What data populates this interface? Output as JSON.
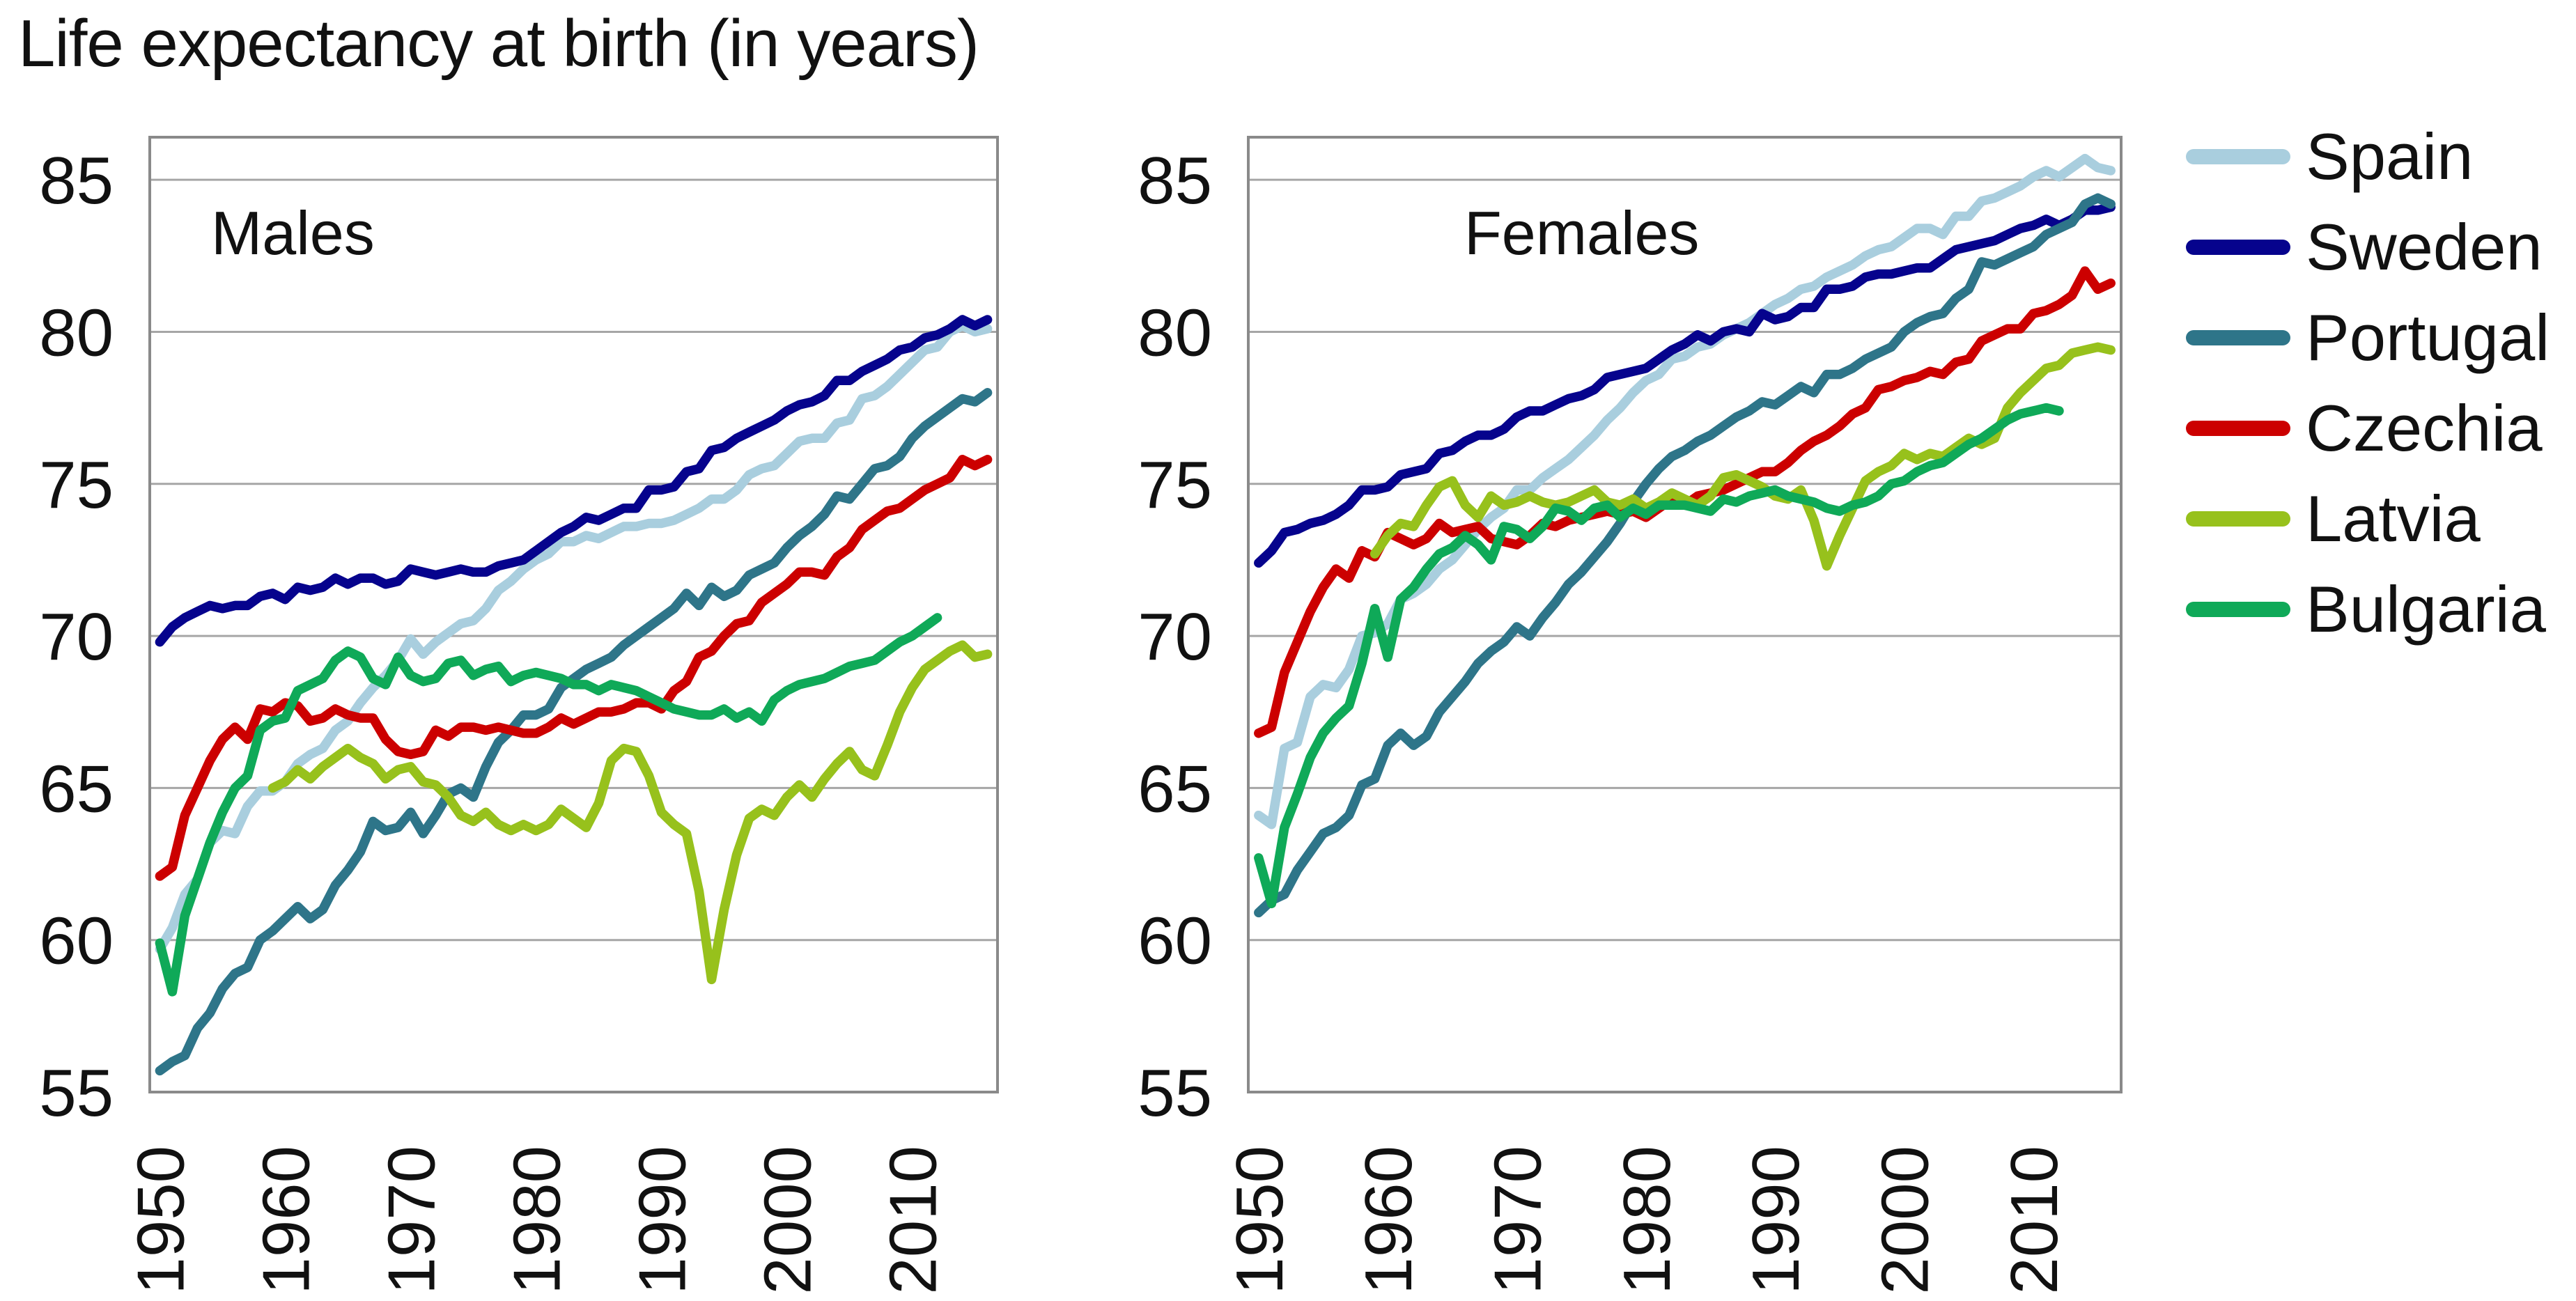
{
  "title": "Life expectancy at birth (in years)",
  "legend": {
    "items": [
      {
        "label": "Spain",
        "color": "#a9cede"
      },
      {
        "label": "Sweden",
        "color": "#06038d"
      },
      {
        "label": "Portugal",
        "color": "#2e7589"
      },
      {
        "label": "Czechia",
        "color": "#cc0000"
      },
      {
        "label": "Latvia",
        "color": "#97c11c"
      },
      {
        "label": "Bulgaria",
        "color": "#0fa958"
      }
    ]
  },
  "axes": {
    "y_ticks": [
      55,
      60,
      65,
      70,
      75,
      80,
      85
    ],
    "x_ticks": [
      1950,
      1960,
      1970,
      1980,
      1990,
      2000,
      2010
    ],
    "ylim": [
      55,
      86.4
    ],
    "xlim": [
      1949.2,
      2016.8
    ],
    "grid": "horizontal"
  },
  "colors": {
    "gridline": "#a6a6a6",
    "frame": "#8a8a8a",
    "text": "#111111"
  },
  "chart_data": [
    {
      "type": "line",
      "panel": "males",
      "panel_label": "Males",
      "series": [
        {
          "name": "Spain",
          "color": "#a9cede",
          "start_year": 1950,
          "values": [
            59.7,
            60.4,
            61.5,
            62.0,
            63.2,
            63.6,
            63.5,
            64.4,
            64.9,
            64.9,
            65.2,
            65.8,
            66.1,
            66.3,
            66.9,
            67.2,
            67.8,
            68.3,
            68.7,
            69.2,
            69.9,
            69.4,
            69.8,
            70.1,
            70.4,
            70.5,
            70.9,
            71.5,
            71.8,
            72.2,
            72.5,
            72.7,
            73.1,
            73.1,
            73.3,
            73.2,
            73.4,
            73.6,
            73.6,
            73.7,
            73.7,
            73.8,
            74.0,
            74.2,
            74.5,
            74.5,
            74.8,
            75.3,
            75.5,
            75.6,
            76.0,
            76.4,
            76.5,
            76.5,
            77.0,
            77.1,
            77.8,
            77.9,
            78.2,
            78.6,
            79.0,
            79.4,
            79.5,
            80.0,
            80.2,
            80.0,
            80.1
          ]
        },
        {
          "name": "Sweden",
          "color": "#06038d",
          "start_year": 1950,
          "values": [
            69.8,
            70.3,
            70.6,
            70.8,
            71.0,
            70.9,
            71.0,
            71.0,
            71.3,
            71.4,
            71.2,
            71.6,
            71.5,
            71.6,
            71.9,
            71.7,
            71.9,
            71.9,
            71.7,
            71.8,
            72.2,
            72.1,
            72.0,
            72.1,
            72.2,
            72.1,
            72.1,
            72.3,
            72.4,
            72.5,
            72.8,
            73.1,
            73.4,
            73.6,
            73.9,
            73.8,
            74.0,
            74.2,
            74.2,
            74.8,
            74.8,
            74.9,
            75.4,
            75.5,
            76.1,
            76.2,
            76.5,
            76.7,
            76.9,
            77.1,
            77.4,
            77.6,
            77.7,
            77.9,
            78.4,
            78.4,
            78.7,
            78.9,
            79.1,
            79.4,
            79.5,
            79.8,
            79.9,
            80.1,
            80.4,
            80.2,
            80.4
          ]
        },
        {
          "name": "Portugal",
          "color": "#2e7589",
          "start_year": 1950,
          "values": [
            55.7,
            56.0,
            56.2,
            57.1,
            57.6,
            58.4,
            58.9,
            59.1,
            60.0,
            60.3,
            60.7,
            61.1,
            60.7,
            61.0,
            61.8,
            62.3,
            62.9,
            63.9,
            63.6,
            63.7,
            64.2,
            63.5,
            64.1,
            64.8,
            65.0,
            64.7,
            65.7,
            66.5,
            66.9,
            67.4,
            67.4,
            67.6,
            68.3,
            68.6,
            68.9,
            69.1,
            69.3,
            69.7,
            70.0,
            70.3,
            70.6,
            70.9,
            71.4,
            71.0,
            71.6,
            71.3,
            71.5,
            72.0,
            72.2,
            72.4,
            72.9,
            73.3,
            73.6,
            74.0,
            74.6,
            74.5,
            75.0,
            75.5,
            75.6,
            75.9,
            76.5,
            76.9,
            77.2,
            77.5,
            77.8,
            77.7,
            78.0
          ]
        },
        {
          "name": "Czechia",
          "color": "#cc0000",
          "start_year": 1950,
          "values": [
            62.1,
            62.4,
            64.1,
            65.0,
            65.9,
            66.6,
            67.0,
            66.6,
            67.6,
            67.5,
            67.8,
            67.7,
            67.2,
            67.3,
            67.6,
            67.4,
            67.3,
            67.3,
            66.6,
            66.2,
            66.1,
            66.2,
            66.9,
            66.7,
            67.0,
            67.0,
            66.9,
            67.0,
            66.9,
            66.8,
            66.8,
            67.0,
            67.3,
            67.1,
            67.3,
            67.5,
            67.5,
            67.6,
            67.8,
            67.8,
            67.6,
            68.2,
            68.5,
            69.3,
            69.5,
            70.0,
            70.4,
            70.5,
            71.1,
            71.4,
            71.7,
            72.1,
            72.1,
            72.0,
            72.6,
            72.9,
            73.5,
            73.8,
            74.1,
            74.2,
            74.5,
            74.8,
            75.0,
            75.2,
            75.8,
            75.6,
            75.8
          ]
        },
        {
          "name": "Latvia",
          "color": "#97c11c",
          "start_year": 1959,
          "values": [
            65.0,
            65.2,
            65.6,
            65.3,
            65.7,
            66.0,
            66.3,
            66.0,
            65.8,
            65.3,
            65.6,
            65.7,
            65.2,
            65.1,
            64.7,
            64.1,
            63.9,
            64.2,
            63.8,
            63.6,
            63.8,
            63.6,
            63.8,
            64.3,
            64.0,
            63.7,
            64.5,
            65.9,
            66.3,
            66.2,
            65.4,
            64.2,
            63.8,
            63.5,
            61.6,
            58.7,
            61.0,
            62.8,
            64.0,
            64.3,
            64.1,
            64.7,
            65.1,
            64.7,
            65.3,
            65.8,
            66.2,
            65.6,
            65.4,
            66.4,
            67.5,
            68.3,
            68.9,
            69.2,
            69.5,
            69.7,
            69.3,
            69.4
          ]
        },
        {
          "name": "Bulgaria",
          "color": "#0fa958",
          "start_year": 1950,
          "values": [
            59.9,
            58.3,
            60.8,
            62.0,
            63.2,
            64.2,
            65.0,
            65.4,
            66.9,
            67.2,
            67.3,
            68.2,
            68.4,
            68.6,
            69.2,
            69.5,
            69.3,
            68.6,
            68.4,
            69.3,
            68.7,
            68.5,
            68.6,
            69.1,
            69.2,
            68.7,
            68.9,
            69.0,
            68.5,
            68.7,
            68.8,
            68.7,
            68.6,
            68.4,
            68.4,
            68.2,
            68.4,
            68.3,
            68.2,
            68.0,
            67.8,
            67.6,
            67.5,
            67.4,
            67.4,
            67.6,
            67.3,
            67.5,
            67.2,
            67.9,
            68.2,
            68.4,
            68.5,
            68.6,
            68.8,
            69.0,
            69.1,
            69.2,
            69.5,
            69.8,
            70.0,
            70.3,
            70.6
          ]
        }
      ]
    },
    {
      "type": "line",
      "panel": "females",
      "panel_label": "Females",
      "series": [
        {
          "name": "Spain",
          "color": "#a9cede",
          "start_year": 1950,
          "values": [
            64.1,
            63.8,
            66.3,
            66.5,
            68.0,
            68.4,
            68.3,
            68.9,
            70.0,
            70.1,
            70.4,
            71.2,
            71.4,
            71.7,
            72.2,
            72.5,
            73.0,
            73.5,
            73.9,
            74.2,
            74.8,
            74.8,
            75.2,
            75.5,
            75.8,
            76.2,
            76.6,
            77.1,
            77.5,
            78.0,
            78.4,
            78.6,
            79.1,
            79.2,
            79.5,
            79.6,
            79.9,
            80.1,
            80.3,
            80.6,
            80.9,
            81.1,
            81.4,
            81.5,
            81.8,
            82.0,
            82.2,
            82.5,
            82.7,
            82.8,
            83.1,
            83.4,
            83.4,
            83.2,
            83.8,
            83.8,
            84.3,
            84.4,
            84.6,
            84.8,
            85.1,
            85.3,
            85.1,
            85.4,
            85.7,
            85.4,
            85.3
          ]
        },
        {
          "name": "Sweden",
          "color": "#06038d",
          "start_year": 1950,
          "values": [
            72.4,
            72.8,
            73.4,
            73.5,
            73.7,
            73.8,
            74.0,
            74.3,
            74.8,
            74.8,
            74.9,
            75.3,
            75.4,
            75.5,
            76.0,
            76.1,
            76.4,
            76.6,
            76.6,
            76.8,
            77.2,
            77.4,
            77.4,
            77.6,
            77.8,
            77.9,
            78.1,
            78.5,
            78.6,
            78.7,
            78.8,
            79.1,
            79.4,
            79.6,
            79.9,
            79.7,
            80.0,
            80.1,
            80.0,
            80.6,
            80.4,
            80.5,
            80.8,
            80.8,
            81.4,
            81.4,
            81.5,
            81.8,
            81.9,
            81.9,
            82.0,
            82.1,
            82.1,
            82.4,
            82.7,
            82.8,
            82.9,
            83.0,
            83.2,
            83.4,
            83.5,
            83.7,
            83.5,
            83.7,
            84.0,
            84.0,
            84.1
          ]
        },
        {
          "name": "Portugal",
          "color": "#2e7589",
          "start_year": 1950,
          "values": [
            60.9,
            61.3,
            61.5,
            62.3,
            62.9,
            63.5,
            63.7,
            64.1,
            65.1,
            65.3,
            66.4,
            66.8,
            66.4,
            66.7,
            67.5,
            68.0,
            68.5,
            69.1,
            69.5,
            69.8,
            70.3,
            70.0,
            70.6,
            71.1,
            71.7,
            72.1,
            72.6,
            73.1,
            73.7,
            74.4,
            75.0,
            75.5,
            75.9,
            76.1,
            76.4,
            76.6,
            76.9,
            77.2,
            77.4,
            77.7,
            77.6,
            77.9,
            78.2,
            78.0,
            78.6,
            78.6,
            78.8,
            79.1,
            79.3,
            79.5,
            80.0,
            80.3,
            80.5,
            80.6,
            81.1,
            81.4,
            82.3,
            82.2,
            82.4,
            82.6,
            82.8,
            83.2,
            83.4,
            83.6,
            84.2,
            84.4,
            84.2
          ]
        },
        {
          "name": "Czechia",
          "color": "#cc0000",
          "start_year": 1950,
          "values": [
            66.8,
            67.0,
            68.8,
            69.8,
            70.8,
            71.6,
            72.2,
            71.9,
            72.8,
            72.6,
            73.4,
            73.2,
            73.0,
            73.2,
            73.7,
            73.4,
            73.5,
            73.6,
            73.2,
            73.1,
            73.0,
            73.3,
            73.7,
            73.6,
            73.8,
            73.9,
            74.0,
            74.1,
            74.0,
            74.1,
            73.9,
            74.2,
            74.5,
            74.3,
            74.6,
            74.7,
            74.8,
            75.0,
            75.2,
            75.4,
            75.4,
            75.7,
            76.1,
            76.4,
            76.6,
            76.9,
            77.3,
            77.5,
            78.1,
            78.2,
            78.4,
            78.5,
            78.7,
            78.6,
            79.0,
            79.1,
            79.7,
            79.9,
            80.1,
            80.1,
            80.6,
            80.7,
            80.9,
            81.2,
            82.0,
            81.4,
            81.6
          ]
        },
        {
          "name": "Latvia",
          "color": "#97c11c",
          "start_year": 1959,
          "values": [
            72.7,
            73.3,
            73.7,
            73.6,
            74.3,
            74.9,
            75.1,
            74.3,
            73.9,
            74.6,
            74.3,
            74.4,
            74.6,
            74.4,
            74.3,
            74.4,
            74.6,
            74.8,
            74.4,
            74.3,
            74.5,
            74.2,
            74.4,
            74.7,
            74.5,
            74.3,
            74.6,
            75.2,
            75.3,
            75.1,
            74.9,
            74.6,
            74.5,
            74.8,
            73.8,
            72.3,
            73.3,
            74.2,
            75.1,
            75.4,
            75.6,
            76.0,
            75.8,
            76.0,
            75.9,
            76.2,
            76.5,
            76.3,
            76.5,
            77.5,
            78.0,
            78.4,
            78.8,
            78.9,
            79.3,
            79.4,
            79.5,
            79.4
          ]
        },
        {
          "name": "Bulgaria",
          "color": "#0fa958",
          "start_year": 1950,
          "values": [
            62.7,
            61.2,
            63.7,
            64.8,
            66.0,
            66.8,
            67.3,
            67.7,
            69.1,
            70.9,
            69.3,
            71.2,
            71.6,
            72.2,
            72.7,
            72.9,
            73.3,
            73.0,
            72.5,
            73.6,
            73.5,
            73.2,
            73.6,
            74.2,
            74.1,
            73.8,
            74.2,
            74.3,
            73.9,
            74.2,
            74.0,
            74.3,
            74.3,
            74.3,
            74.2,
            74.1,
            74.5,
            74.4,
            74.6,
            74.7,
            74.8,
            74.6,
            74.5,
            74.4,
            74.2,
            74.1,
            74.3,
            74.4,
            74.6,
            75.0,
            75.1,
            75.4,
            75.6,
            75.7,
            76.0,
            76.3,
            76.5,
            76.8,
            77.1,
            77.3,
            77.4,
            77.5,
            77.4
          ]
        }
      ]
    }
  ]
}
